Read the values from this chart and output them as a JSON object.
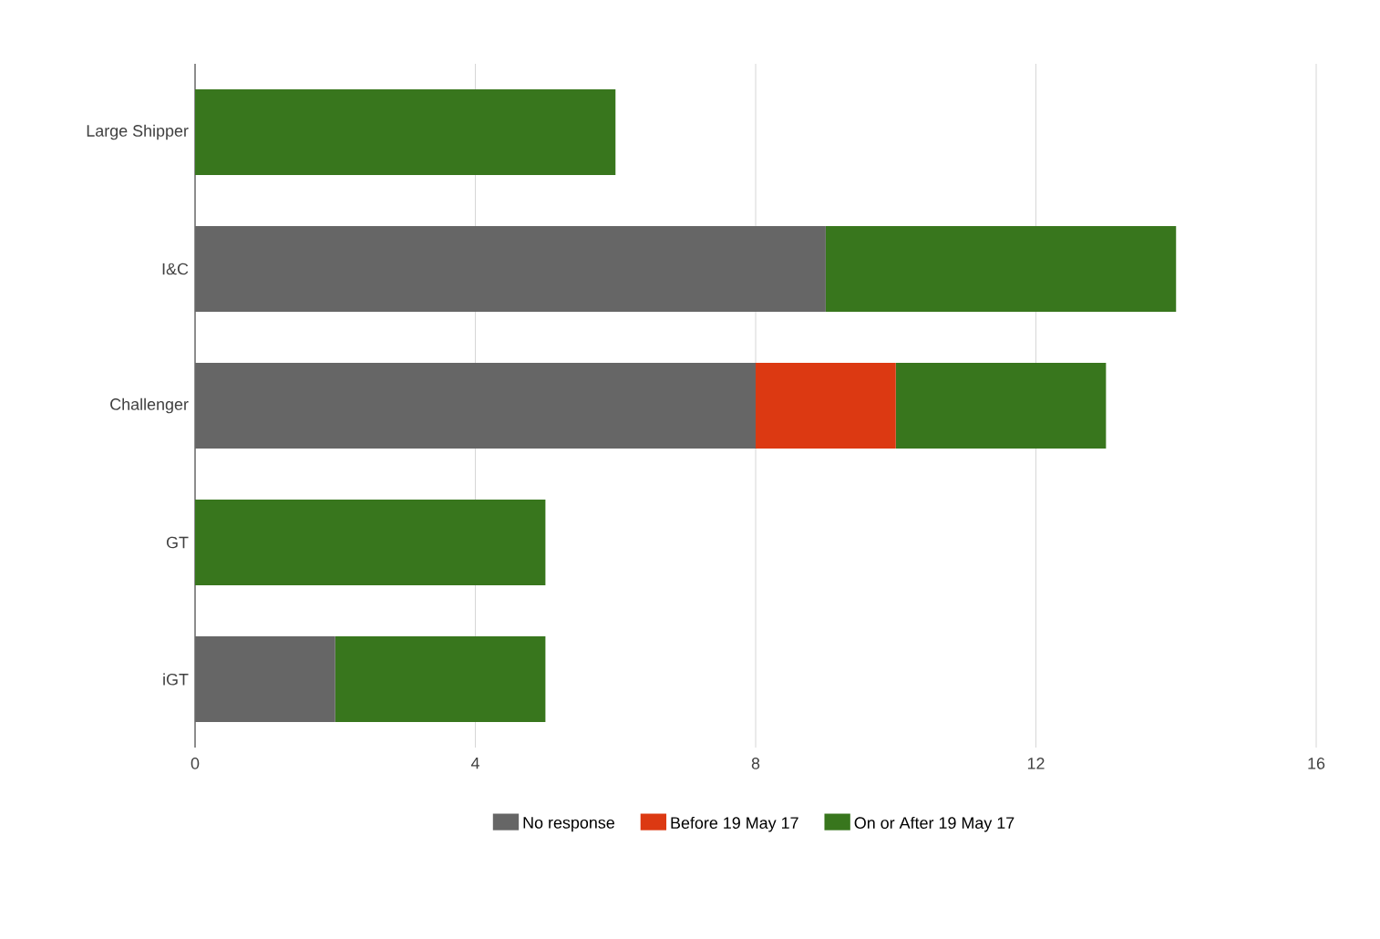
{
  "chart_data": {
    "type": "bar",
    "orientation": "horizontal",
    "stacked": true,
    "categories": [
      "Large Shipper",
      "I&C",
      "Challenger",
      "GT",
      "iGT"
    ],
    "series": [
      {
        "name": "No response",
        "color": "#666666",
        "values": [
          0,
          9,
          8,
          0,
          2
        ]
      },
      {
        "name": "Before 19 May 17",
        "color": "#dc3912",
        "values": [
          0,
          0,
          2,
          0,
          0
        ]
      },
      {
        "name": "On or After 19 May 17",
        "color": "#38761d",
        "values": [
          6,
          5,
          3,
          5,
          3
        ]
      }
    ],
    "xlim": [
      0,
      16
    ],
    "xticks": [
      0,
      4,
      8,
      12,
      16
    ],
    "grid": "x",
    "legend": "bottom"
  }
}
